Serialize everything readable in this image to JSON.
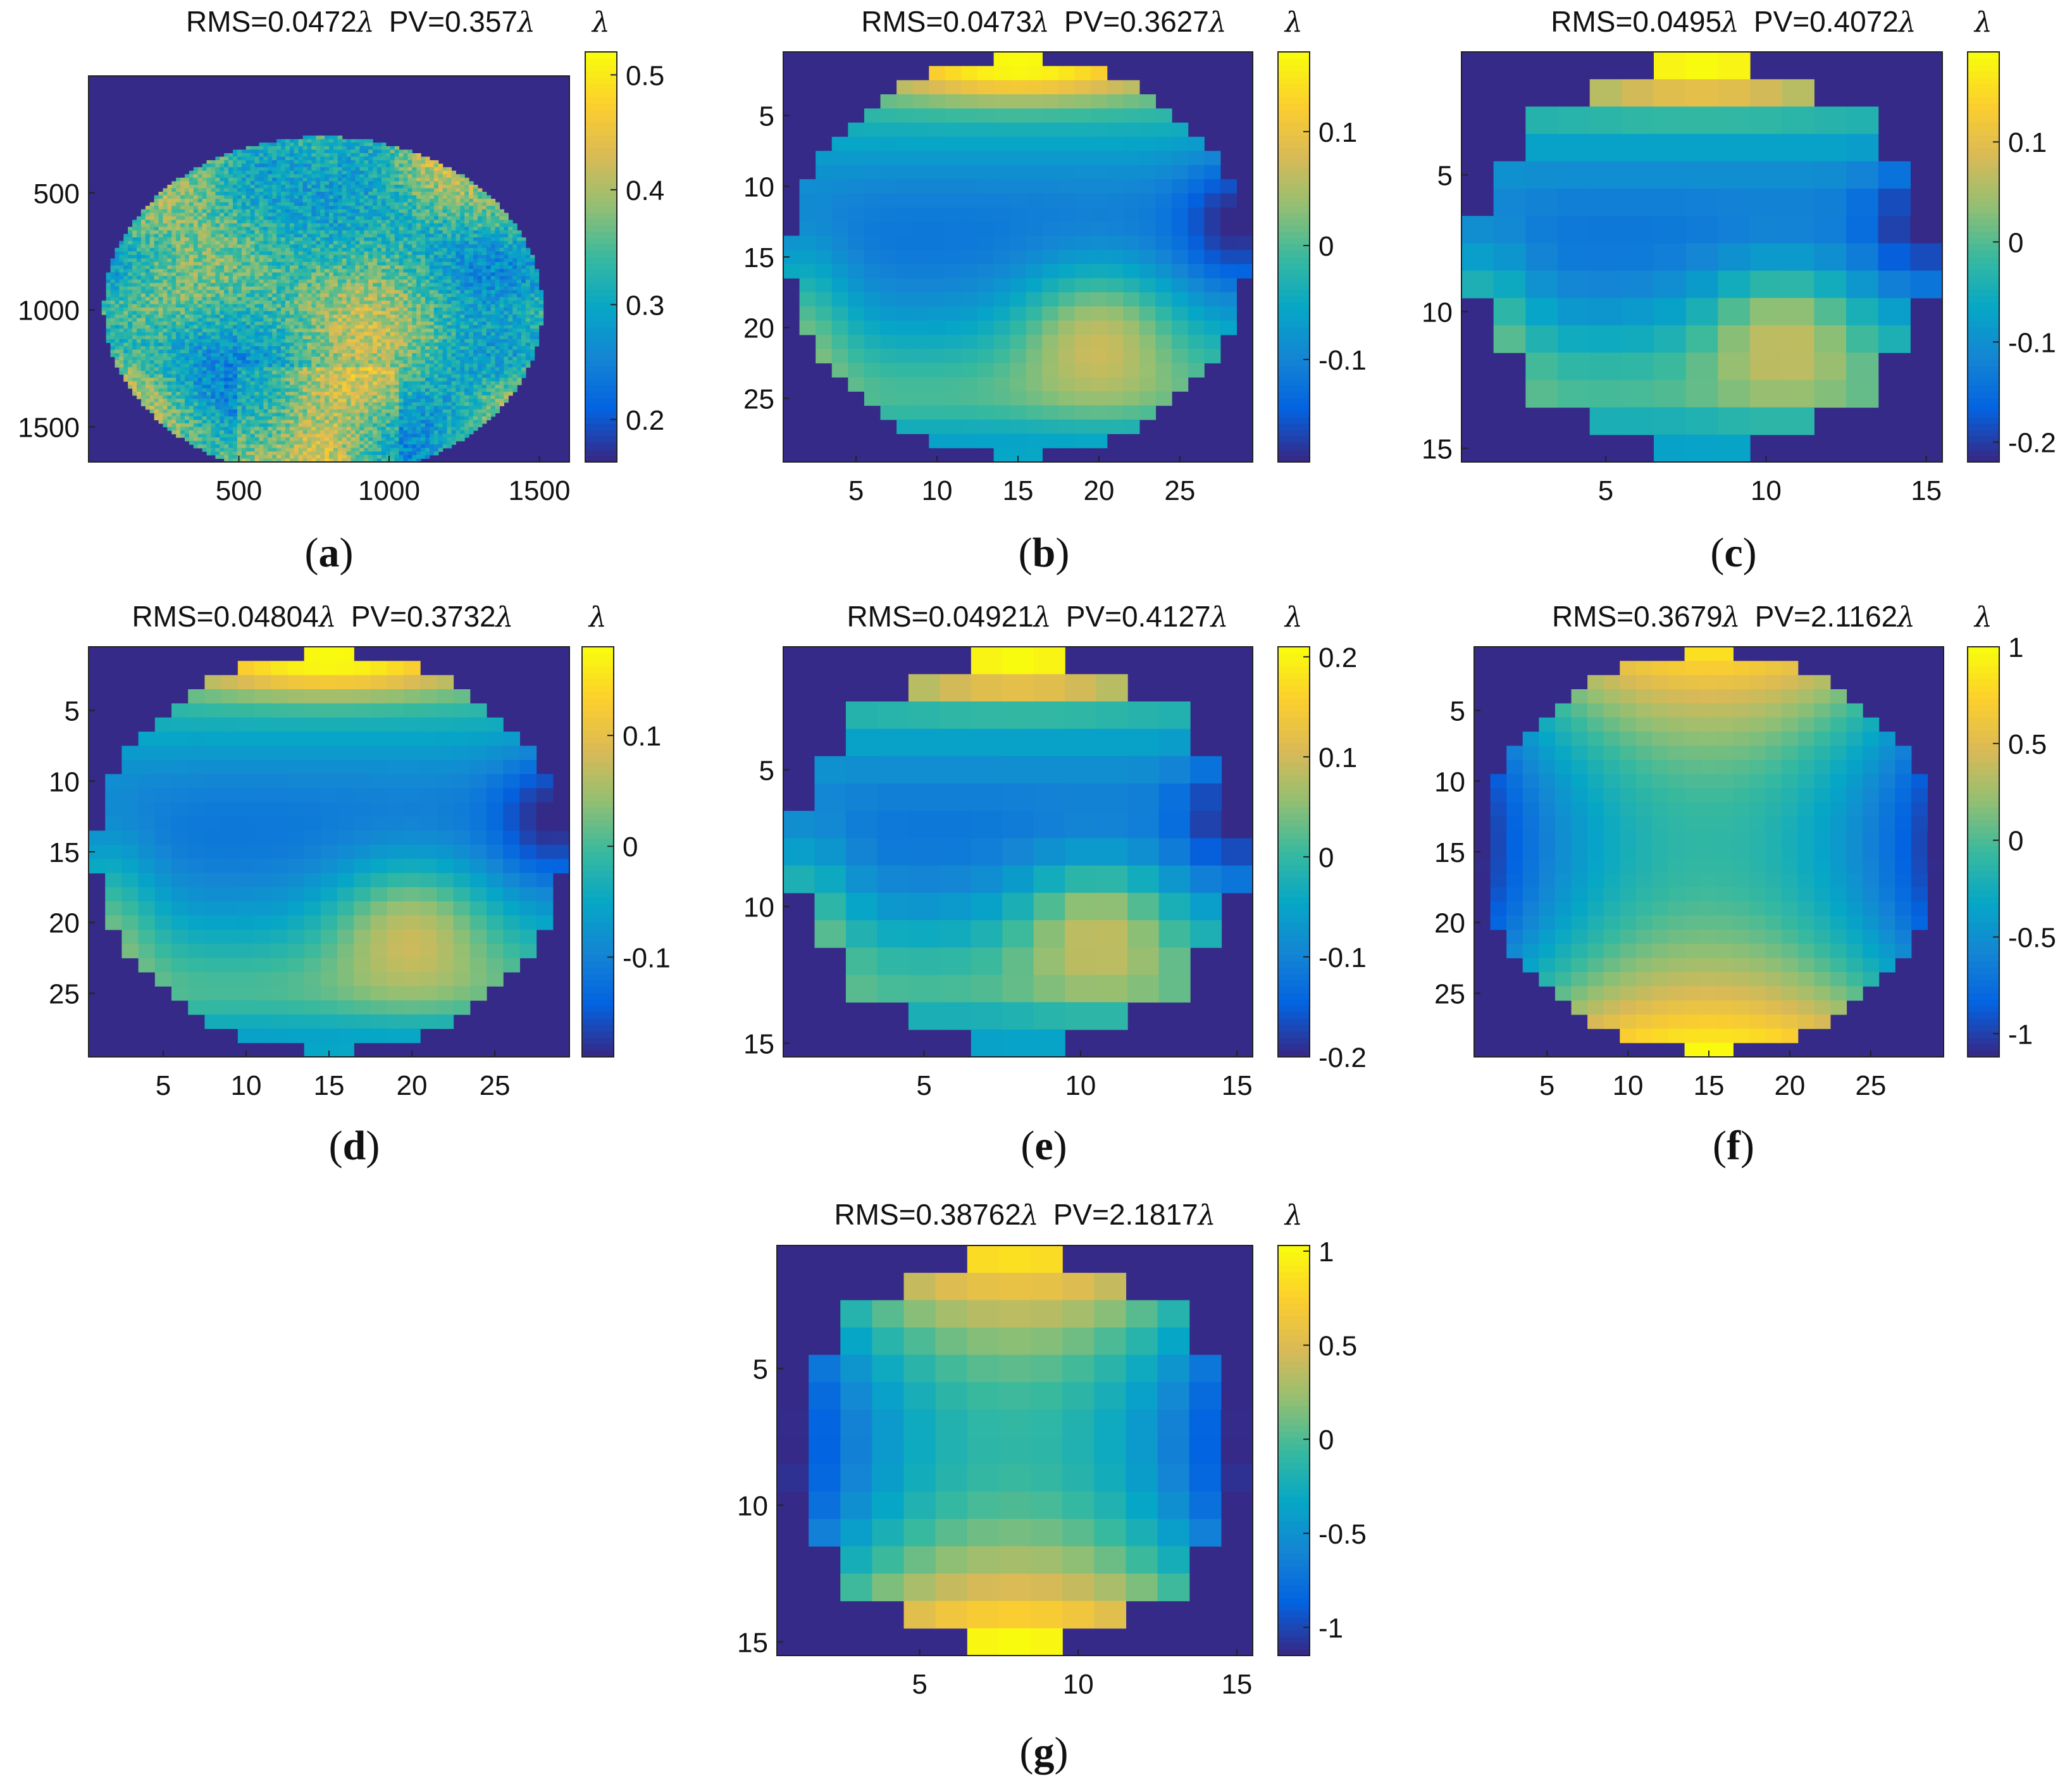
{
  "figure": {
    "unit_symbol": "λ",
    "colormap": [
      "#352a87",
      "#0363e1",
      "#1485d4",
      "#06a7c6",
      "#38b99e",
      "#92bf73",
      "#d9ba56",
      "#fcce2e",
      "#f9fb0e"
    ]
  },
  "chart_data": [
    {
      "id": "a",
      "panel_label": "a",
      "type": "heatmap",
      "rms_text": "RMS=0.0472",
      "pv_text": "PV=0.357",
      "xticks": [
        500,
        1000,
        1500
      ],
      "yticks": [
        500,
        1000,
        1500
      ],
      "xlim": [
        0,
        1600
      ],
      "ylim": [
        0,
        1650
      ],
      "colorbar": {
        "ticks": [
          0.2,
          0.3,
          0.4,
          0.5
        ],
        "tick_labels": [
          "0.2",
          "0.3",
          "0.4",
          "0.5"
        ],
        "range": [
          0.163,
          0.52
        ]
      },
      "aperture": {
        "center": [
          780,
          990
        ],
        "radius": 730
      },
      "pattern": {
        "kind": "speckle",
        "mean": 0.33,
        "spread": 0.06,
        "min": 0.163,
        "max": 0.52,
        "grid": 110
      }
    },
    {
      "id": "b",
      "panel_label": "b",
      "type": "heatmap",
      "rms_text": "RMS=0.0473",
      "pv_text": "PV=0.3627",
      "xticks": [
        5,
        10,
        15,
        20,
        25
      ],
      "yticks": [
        5,
        10,
        15,
        20,
        25
      ],
      "xlim": [
        0.5,
        29.5
      ],
      "ylim": [
        0.5,
        29.5
      ],
      "colorbar": {
        "ticks": [
          -0.1,
          0,
          0.1
        ],
        "tick_labels": [
          "-0.1",
          "0",
          "0.1"
        ],
        "range": [
          -0.19,
          0.17
        ]
      },
      "aperture": {
        "center": [
          15,
          15
        ],
        "radius": 14.1
      },
      "pattern": {
        "kind": "wave",
        "min": -0.19,
        "max": 0.17,
        "n": 29
      }
    },
    {
      "id": "c",
      "panel_label": "c",
      "type": "heatmap",
      "rms_text": "RMS=0.0495",
      "pv_text": "PV=0.4072",
      "xticks": [
        5,
        10,
        15
      ],
      "yticks": [
        5,
        10,
        15
      ],
      "xlim": [
        0.5,
        15.5
      ],
      "ylim": [
        0.5,
        15.5
      ],
      "colorbar": {
        "ticks": [
          -0.2,
          -0.1,
          0,
          0.1
        ],
        "tick_labels": [
          "-0.2",
          "-0.1",
          "0",
          "0.1"
        ],
        "range": [
          -0.22,
          0.19
        ]
      },
      "aperture": {
        "center": [
          8,
          8
        ],
        "radius": 7.2
      },
      "pattern": {
        "kind": "wave",
        "min": -0.22,
        "max": 0.19,
        "n": 15
      }
    },
    {
      "id": "d",
      "panel_label": "d",
      "type": "heatmap",
      "rms_text": "RMS=0.04804",
      "pv_text": "PV=0.3732",
      "xticks": [
        5,
        10,
        15,
        20,
        25
      ],
      "yticks": [
        5,
        10,
        15,
        20,
        25
      ],
      "xlim": [
        0.5,
        29.5
      ],
      "ylim": [
        0.5,
        29.5
      ],
      "colorbar": {
        "ticks": [
          -0.1,
          0,
          0.1
        ],
        "tick_labels": [
          "-0.1",
          "0",
          "0.1"
        ],
        "range": [
          -0.19,
          0.18
        ]
      },
      "aperture": {
        "center": [
          15,
          15
        ],
        "radius": 14.1
      },
      "pattern": {
        "kind": "wave",
        "min": -0.19,
        "max": 0.18,
        "n": 29
      }
    },
    {
      "id": "e",
      "panel_label": "e",
      "type": "heatmap",
      "rms_text": "RMS=0.04921",
      "pv_text": "PV=0.4127",
      "xticks": [
        5,
        10,
        15
      ],
      "yticks": [
        5,
        10,
        15
      ],
      "xlim": [
        0.5,
        15.5
      ],
      "ylim": [
        0.5,
        15.5
      ],
      "colorbar": {
        "ticks": [
          -0.2,
          -0.1,
          0,
          0.1,
          0.2
        ],
        "tick_labels": [
          "-0.2",
          "-0.1",
          "0",
          "0.1",
          "0.2"
        ],
        "range": [
          -0.2,
          0.21
        ]
      },
      "aperture": {
        "center": [
          8,
          8
        ],
        "radius": 7.2
      },
      "pattern": {
        "kind": "wave",
        "min": -0.2,
        "max": 0.21,
        "n": 15
      }
    },
    {
      "id": "f",
      "panel_label": "f",
      "type": "heatmap",
      "rms_text": "RMS=0.3679",
      "pv_text": "PV=2.1162",
      "xticks": [
        5,
        10,
        15,
        20,
        25
      ],
      "yticks": [
        5,
        10,
        15,
        20,
        25
      ],
      "xlim": [
        0.5,
        29.5
      ],
      "ylim": [
        0.5,
        29.5
      ],
      "colorbar": {
        "ticks": [
          -1,
          -0.5,
          0,
          0.5,
          1
        ],
        "tick_labels": [
          "-1",
          "-0.5",
          "0",
          "0.5",
          "1"
        ],
        "range": [
          -1.12,
          1.0
        ]
      },
      "aperture": {
        "center": [
          15,
          15
        ],
        "radius": 14.1
      },
      "pattern": {
        "kind": "saddle",
        "min": -1.12,
        "max": 1.0,
        "n": 29
      }
    },
    {
      "id": "g",
      "panel_label": "g",
      "type": "heatmap",
      "rms_text": "RMS=0.38762",
      "pv_text": "PV=2.1817",
      "xticks": [
        5,
        10,
        15
      ],
      "yticks": [
        5,
        10,
        15
      ],
      "xlim": [
        0.5,
        15.5
      ],
      "ylim": [
        0.5,
        15.5
      ],
      "colorbar": {
        "ticks": [
          -1,
          -0.5,
          0,
          0.5,
          1
        ],
        "tick_labels": [
          "-1",
          "-0.5",
          "0",
          "0.5",
          "1"
        ],
        "range": [
          -1.15,
          1.03
        ]
      },
      "aperture": {
        "center": [
          8,
          8
        ],
        "radius": 7.2
      },
      "pattern": {
        "kind": "saddle",
        "min": -1.15,
        "max": 1.03,
        "n": 15
      }
    }
  ]
}
